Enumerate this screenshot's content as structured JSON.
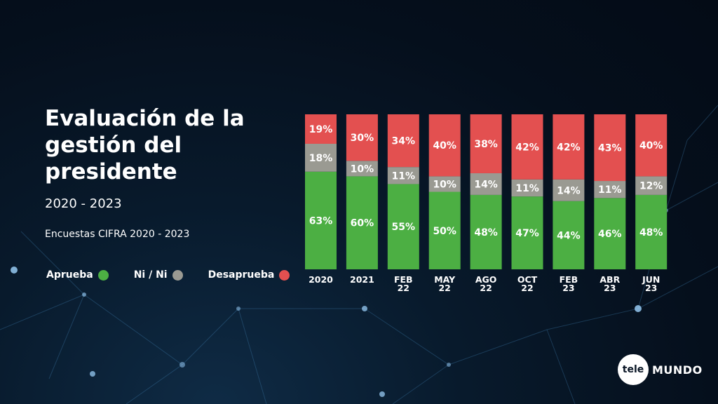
{
  "title": "Evaluación de la gestión del presidente",
  "subtitle": "2020 - 2023",
  "source": "Encuestas CIFRA 2020 - 2023",
  "brand": {
    "left": "tele",
    "right": "MUNDO"
  },
  "colors": {
    "aprueba": "#4caf43",
    "nini": "#9a9a92",
    "desaprueba": "#e35050"
  },
  "chart_data": {
    "type": "bar",
    "stacked": true,
    "categories": [
      "2020",
      "2021",
      "FEB\n22",
      "MAY\n22",
      "AGO\n22",
      "OCT\n22",
      "FEB\n23",
      "ABR\n23",
      "JUN\n23"
    ],
    "series": [
      {
        "name": "Aprueba",
        "key": "aprueba",
        "values": [
          63,
          60,
          55,
          50,
          48,
          47,
          44,
          46,
          48
        ]
      },
      {
        "name": "Ni / Ni",
        "key": "nini",
        "values": [
          18,
          10,
          11,
          10,
          14,
          11,
          14,
          11,
          12
        ]
      },
      {
        "name": "Desaprueba",
        "key": "desaprueba",
        "values": [
          19,
          30,
          34,
          40,
          38,
          42,
          42,
          43,
          40
        ]
      }
    ],
    "value_suffix": "%",
    "ylim": [
      0,
      100
    ],
    "legend": "bottom-left"
  }
}
